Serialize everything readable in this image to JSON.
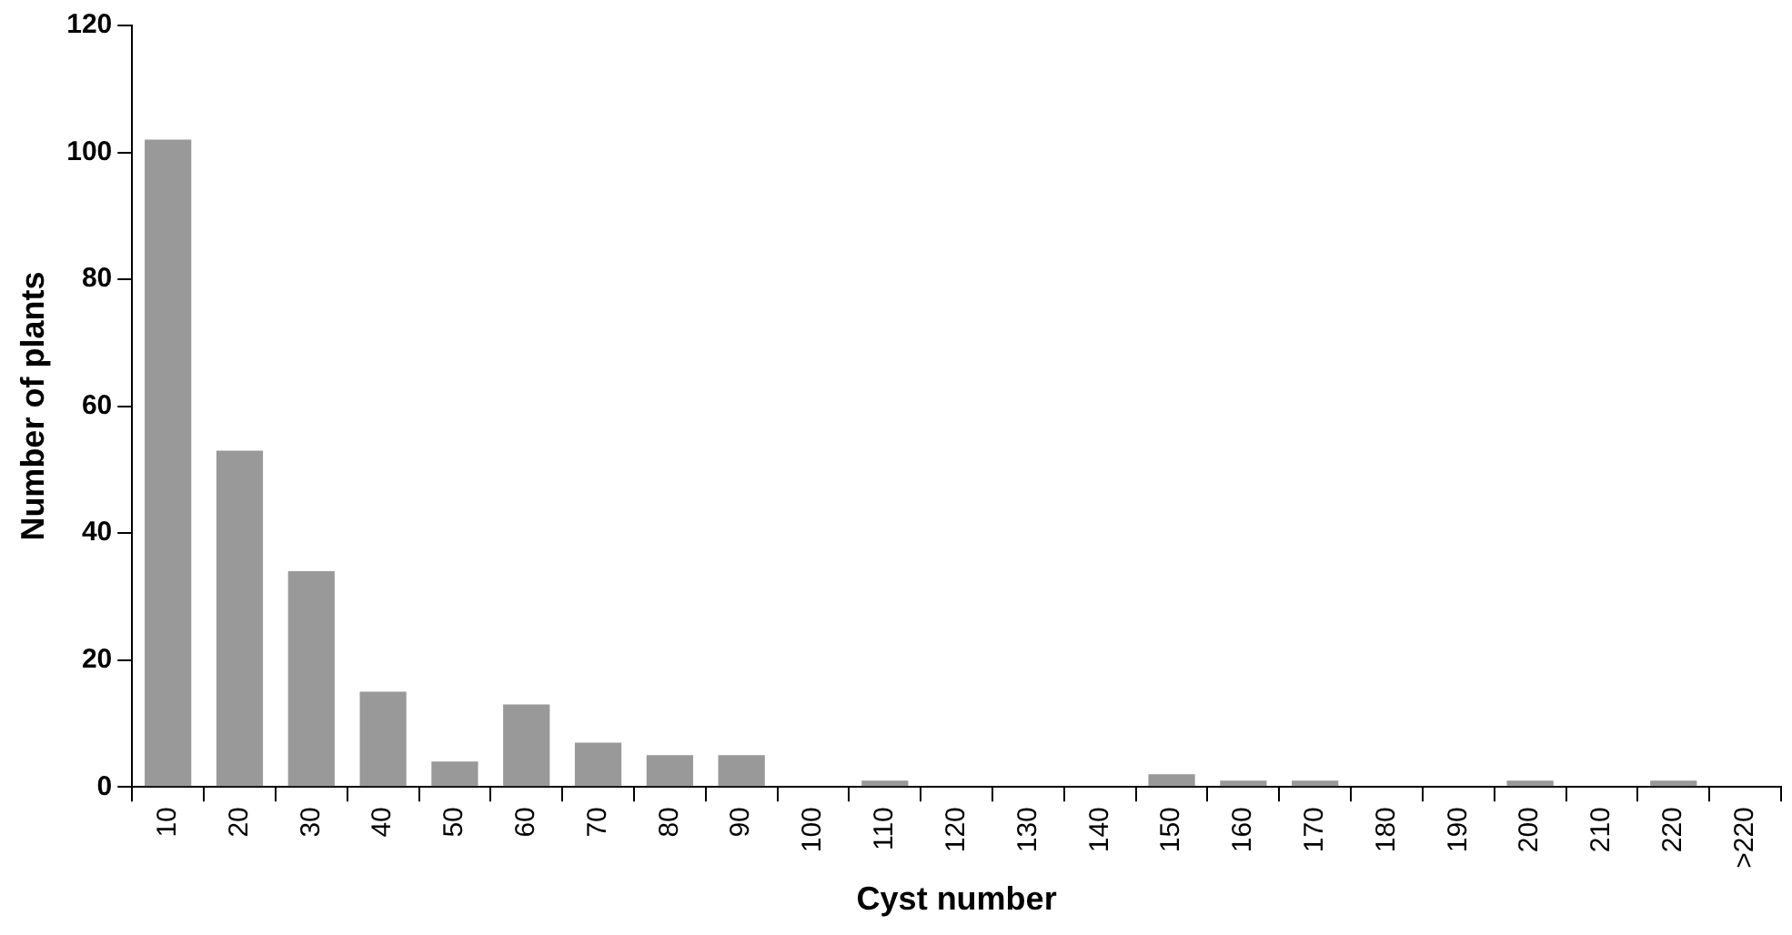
{
  "chart_data": {
    "type": "bar",
    "xlabel": "Cyst number",
    "ylabel": "Number of plants",
    "categories": [
      "10",
      "20",
      "30",
      "40",
      "50",
      "60",
      "70",
      "80",
      "90",
      "100",
      "110",
      "120",
      "130",
      "140",
      "150",
      "160",
      "170",
      "180",
      "190",
      "200",
      "210",
      "220",
      ">220"
    ],
    "values": [
      102,
      53,
      34,
      15,
      4,
      13,
      7,
      5,
      5,
      0,
      1,
      0,
      0,
      0,
      2,
      1,
      1,
      0,
      0,
      1,
      0,
      1,
      0
    ],
    "color": "#999999",
    "ylim": [
      0,
      120
    ],
    "yticks": [
      0,
      20,
      40,
      60,
      80,
      100,
      120
    ],
    "grid": false,
    "legend": false
  }
}
